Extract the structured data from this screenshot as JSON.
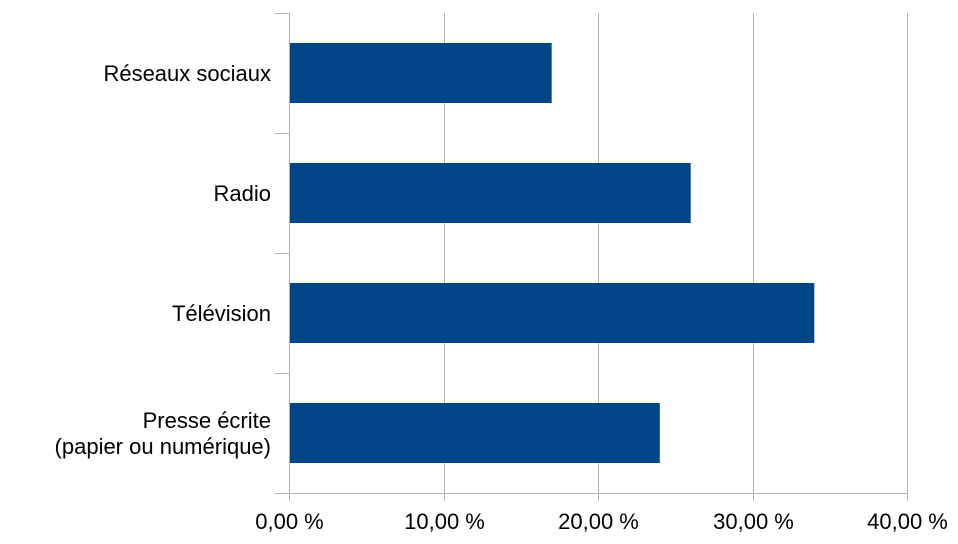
{
  "chart_data": {
    "type": "bar",
    "orientation": "horizontal",
    "categories": [
      [
        "Presse écrite",
        "(papier ou numérique)"
      ],
      [
        "Télévision"
      ],
      [
        "Radio"
      ],
      [
        "Réseaux sociaux"
      ]
    ],
    "values": [
      24,
      34,
      26,
      17
    ],
    "x_ticks": [
      "0,00 %",
      "10,00 %",
      "20,00 %",
      "30,00 %",
      "40,00 %"
    ],
    "xlim": [
      0,
      40
    ],
    "grid": "vertical",
    "legend": "none",
    "colors": {
      "bar": "#004586",
      "grid": "#b3b3b3",
      "axis": "#b3b3b3"
    }
  }
}
